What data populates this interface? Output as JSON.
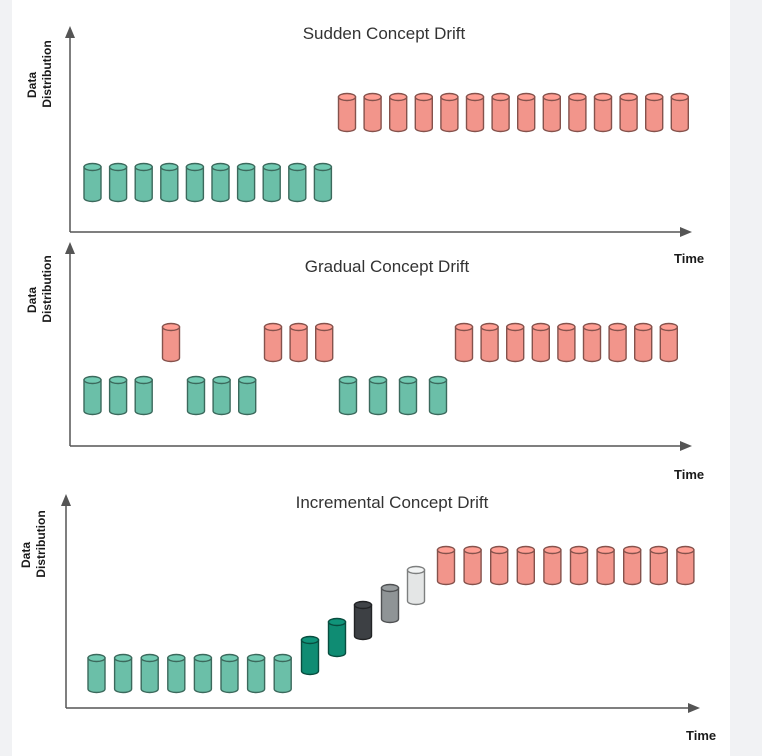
{
  "colors": {
    "old_concept": "#6bbfa8",
    "new_concept": "#f2958b",
    "transition_1": "#0f8c73",
    "transition_2": "#3d4044",
    "transition_3": "#8f9496",
    "transition_4": "#e4e6e6"
  },
  "panels": [
    {
      "title": "Sudden Concept Drift",
      "ylabel_line1": "Data",
      "ylabel_line2": "Distribution",
      "xlabel": "Time",
      "groups": [
        {
          "level": "low",
          "count": 10,
          "kind": "old"
        },
        {
          "level": "high",
          "count": 14,
          "kind": "new"
        }
      ]
    },
    {
      "title": "Gradual Concept Drift",
      "ylabel_line1": "Data",
      "ylabel_line2": "Distribution",
      "xlabel": "Time",
      "groups": [
        {
          "level": "low",
          "count": 3,
          "kind": "old"
        },
        {
          "level": "high",
          "count": 1,
          "kind": "new"
        },
        {
          "level": "low",
          "count": 3,
          "kind": "old"
        },
        {
          "level": "high",
          "count": 3,
          "kind": "new"
        },
        {
          "level": "low",
          "count": 4,
          "kind": "old"
        },
        {
          "level": "high",
          "count": 9,
          "kind": "new"
        }
      ]
    },
    {
      "title": "Incremental Concept Drift",
      "ylabel_line1": "Data",
      "ylabel_line2": "Distribution",
      "xlabel": "Time",
      "groups": [
        {
          "level": "low",
          "count": 8,
          "kind": "old"
        },
        {
          "level": "step1",
          "count": 1,
          "kind": "transition_1"
        },
        {
          "level": "step2",
          "count": 1,
          "kind": "transition_1"
        },
        {
          "level": "step3",
          "count": 1,
          "kind": "transition_2"
        },
        {
          "level": "step4",
          "count": 1,
          "kind": "transition_3"
        },
        {
          "level": "step5",
          "count": 1,
          "kind": "transition_4"
        },
        {
          "level": "high",
          "count": 10,
          "kind": "new"
        }
      ]
    }
  ]
}
